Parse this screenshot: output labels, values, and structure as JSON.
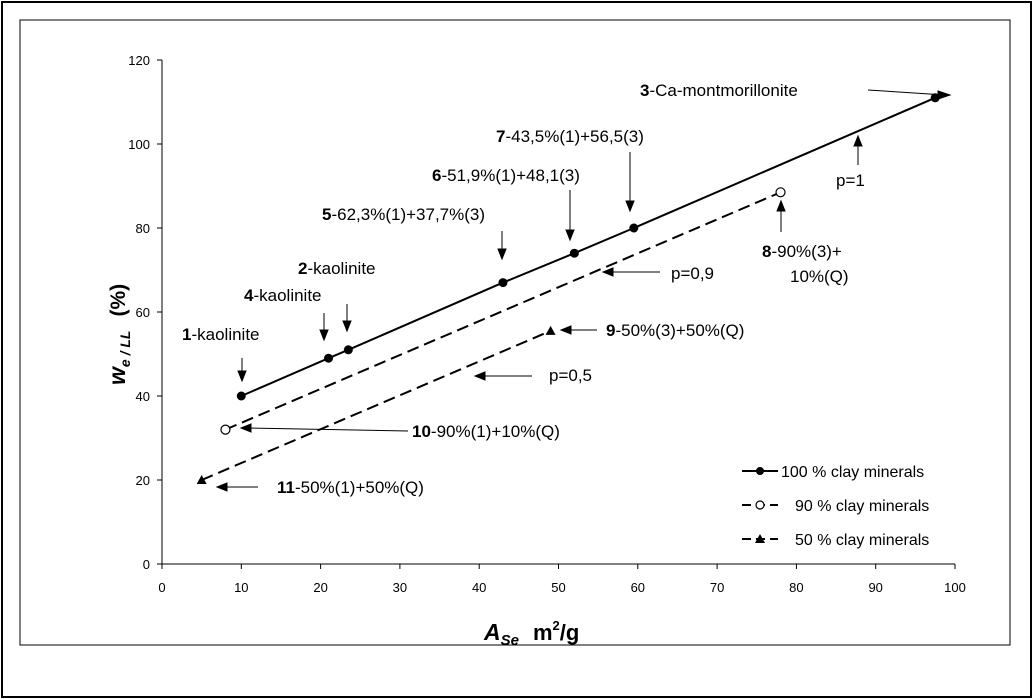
{
  "chart_data": {
    "type": "line",
    "xlabel": {
      "main": "A",
      "sub": "Se",
      "unit": "m",
      "unit_sup": "2",
      "unit_tail": "/g"
    },
    "ylabel": {
      "main": "w",
      "sub": "e / LL",
      "unit": "(%)"
    },
    "xlim": [
      0,
      100
    ],
    "ylim": [
      0,
      120
    ],
    "x_ticks": [
      0,
      10,
      20,
      30,
      40,
      50,
      60,
      70,
      80,
      90,
      100
    ],
    "y_ticks": [
      0,
      20,
      40,
      60,
      80,
      100,
      120
    ],
    "grid": false,
    "legend_position": "bottom-right",
    "series": [
      {
        "name": "100 % clay minerals",
        "marker": "filled-circle",
        "dash": "solid",
        "points": [
          [
            10,
            40
          ],
          [
            21,
            49
          ],
          [
            23.5,
            51
          ],
          [
            43,
            67
          ],
          [
            52,
            74
          ],
          [
            59.5,
            80
          ],
          [
            97.5,
            111
          ]
        ]
      },
      {
        "name": "90 % clay minerals",
        "marker": "open-circle",
        "dash": "dashed",
        "points": [
          [
            8,
            32
          ],
          [
            78,
            88.5
          ]
        ]
      },
      {
        "name": "50 % clay minerals",
        "marker": "filled-triangle",
        "dash": "dashed",
        "points": [
          [
            5,
            20
          ],
          [
            49,
            55.5
          ]
        ]
      }
    ],
    "annotations": [
      {
        "id": "1",
        "text": "-kaolinite"
      },
      {
        "id": "2",
        "text": "-kaolinite"
      },
      {
        "id": "3",
        "text": "-Ca-montmorillonite"
      },
      {
        "id": "4",
        "text": "-kaolinite"
      },
      {
        "id": "5",
        "text": "-62,3%(1)+37,7%(3)"
      },
      {
        "id": "6",
        "text": "-51,9%(1)+48,1(3)"
      },
      {
        "id": "7",
        "text": "-43,5%(1)+56,5(3)"
      },
      {
        "id": "8",
        "text": "-90%(3)+",
        "text2": "10%(Q)"
      },
      {
        "id": "9",
        "text": "-50%(3)+50%(Q)"
      },
      {
        "id": "10",
        "text": "-90%(1)+10%(Q)"
      },
      {
        "id": "11",
        "text": "-50%(1)+50%(Q)"
      }
    ],
    "line_labels": {
      "p1": "p=1",
      "p09": "p=0,9",
      "p05": "p=0,5"
    }
  }
}
